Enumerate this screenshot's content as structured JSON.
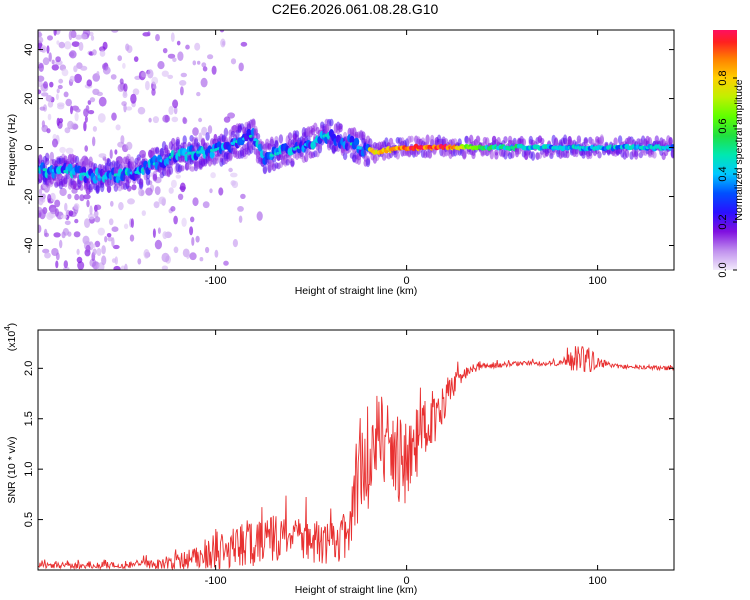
{
  "chart_data": [
    {
      "type": "heatmap",
      "title": "C2E6.2026.061.08.28.G10",
      "xlabel": "Height of straight line (km)",
      "ylabel": "Frequency (Hz)",
      "xlim": [
        -193,
        140
      ],
      "ylim": [
        -50,
        48
      ],
      "x_ticks": [
        -100,
        0,
        100
      ],
      "x_tick_labels": [
        "-100",
        "0",
        "100"
      ],
      "y_ticks": [
        -40,
        -20,
        0,
        20,
        40
      ],
      "y_tick_labels": [
        "-40",
        "-20",
        "0",
        "20",
        "40"
      ],
      "ridge": {
        "x": [
          -190,
          -175,
          -160,
          -150,
          -140,
          -130,
          -120,
          -110,
          -100,
          -90,
          -80,
          -75,
          -70,
          -60,
          -50,
          -42,
          -35,
          -30,
          -25,
          -20,
          -15,
          -10,
          0,
          10,
          20,
          40,
          60,
          80,
          100,
          120,
          140
        ],
        "y": [
          -9,
          -10,
          -12,
          -11,
          -10,
          -6,
          -3,
          -2,
          -1,
          2,
          5,
          -4,
          -3,
          -1,
          2,
          5,
          3,
          2,
          0,
          -1,
          -2,
          -1,
          0,
          0,
          0,
          0,
          0,
          0,
          0,
          0,
          0
        ],
        "amplitude": [
          0.45,
          0.45,
          0.45,
          0.42,
          0.42,
          0.45,
          0.45,
          0.48,
          0.5,
          0.5,
          0.5,
          0.45,
          0.48,
          0.5,
          0.5,
          0.5,
          0.6,
          0.7,
          0.85,
          0.85,
          0.8,
          0.85,
          0.95,
          0.95,
          0.98,
          0.55,
          0.5,
          0.45,
          0.45,
          0.45,
          0.45
        ]
      },
      "colorbar": {
        "label": "Normalized spectral amplitude",
        "range": [
          0.0,
          1.0
        ],
        "ticks": [
          0.0,
          0.2,
          0.4,
          0.6,
          0.8
        ],
        "tick_labels": [
          "0.0",
          "0.2",
          "0.4",
          "0.6",
          "0.8"
        ]
      }
    },
    {
      "type": "line",
      "xlabel": "Height of straight line (km)",
      "ylabel": "SNR (10 * v/v)",
      "y_multiplier_label": "(x10",
      "y_multiplier_exponent": "4",
      "xlim": [
        -193,
        140
      ],
      "ylim": [
        0,
        2.38
      ],
      "x_ticks": [
        -100,
        0,
        100
      ],
      "x_tick_labels": [
        "-100",
        "0",
        "100"
      ],
      "y_ticks": [
        0.5,
        1.0,
        1.5,
        2.0
      ],
      "y_tick_labels": [
        "0.5",
        "1.0",
        "1.5",
        "2.0"
      ],
      "series": [
        {
          "name": "SNR",
          "color": "#e83030",
          "x": [
            -193,
            -170,
            -150,
            -130,
            -115,
            -100,
            -90,
            -80,
            -70,
            -60,
            -50,
            -40,
            -35,
            -30,
            -27,
            -25,
            -20,
            -15,
            -10,
            -5,
            0,
            5,
            10,
            15,
            20,
            25,
            30,
            40,
            60,
            80,
            90,
            95,
            100,
            110,
            120,
            140
          ],
          "y": [
            0.05,
            0.04,
            0.05,
            0.06,
            0.1,
            0.15,
            0.22,
            0.28,
            0.3,
            0.3,
            0.28,
            0.26,
            0.28,
            0.3,
            0.7,
            1.0,
            1.1,
            1.3,
            1.2,
            1.1,
            1.05,
            1.25,
            1.45,
            1.55,
            1.7,
            1.85,
            1.95,
            2.02,
            2.05,
            2.05,
            2.1,
            2.08,
            2.06,
            2.02,
            2.01,
            2.0
          ],
          "noise": [
            0.03,
            0.03,
            0.04,
            0.05,
            0.1,
            0.14,
            0.2,
            0.26,
            0.24,
            0.22,
            0.22,
            0.2,
            0.22,
            0.25,
            0.45,
            0.5,
            0.55,
            0.5,
            0.45,
            0.42,
            0.4,
            0.35,
            0.3,
            0.28,
            0.2,
            0.12,
            0.06,
            0.03,
            0.02,
            0.03,
            0.15,
            0.14,
            0.05,
            0.02,
            0.02,
            0.02
          ]
        }
      ]
    }
  ]
}
